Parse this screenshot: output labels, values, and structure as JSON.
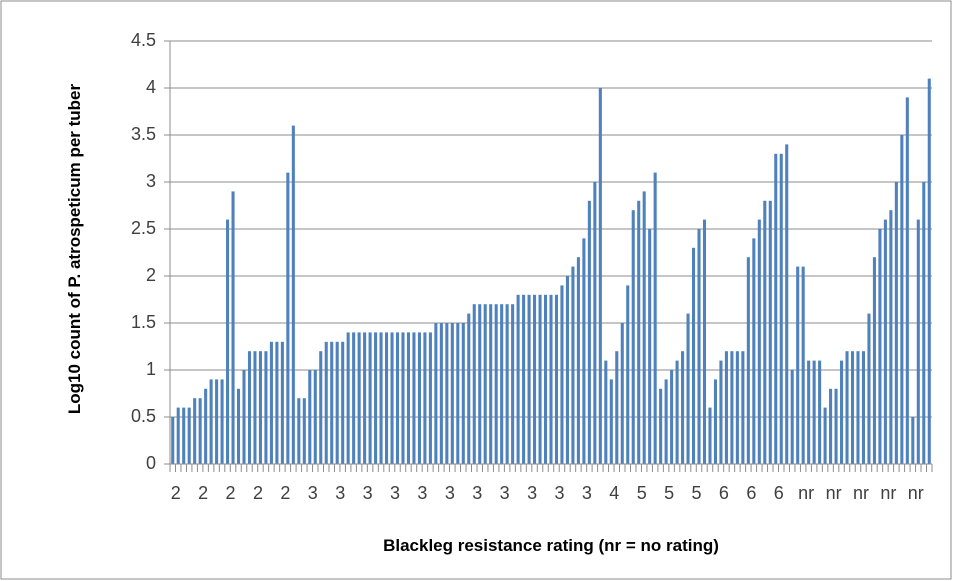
{
  "chart_data": {
    "type": "bar",
    "y_label": "Log10 count of P. atrospeticum per tuber",
    "x_label": "Blackleg resistance rating (nr = no rating)",
    "color": "#4f81bd",
    "grid": true,
    "ylim": [
      0,
      4.5
    ],
    "yticks": [
      0,
      0.5,
      1,
      1.5,
      2,
      2.5,
      3,
      3.5,
      4,
      4.5
    ],
    "categories": [
      "2",
      null,
      null,
      null,
      null,
      "2",
      null,
      null,
      null,
      null,
      "2",
      null,
      null,
      null,
      null,
      "2",
      null,
      null,
      null,
      null,
      "2",
      null,
      null,
      null,
      null,
      "3",
      null,
      null,
      null,
      null,
      "3",
      null,
      null,
      null,
      null,
      "3",
      null,
      null,
      null,
      null,
      "3",
      null,
      null,
      null,
      null,
      "3",
      null,
      null,
      null,
      null,
      "3",
      null,
      null,
      null,
      null,
      "3",
      null,
      null,
      null,
      null,
      "3",
      null,
      null,
      null,
      null,
      "3",
      null,
      null,
      null,
      null,
      "3",
      null,
      null,
      null,
      null,
      "3",
      null,
      null,
      null,
      null,
      "4",
      null,
      null,
      null,
      null,
      "5",
      null,
      null,
      null,
      null,
      "5",
      null,
      null,
      null,
      null,
      "5",
      null,
      null,
      null,
      null,
      "6",
      null,
      null,
      null,
      null,
      "6",
      null,
      null,
      null,
      null,
      "6",
      null,
      null,
      null,
      null,
      "nr",
      null,
      null,
      null,
      null,
      "nr",
      null,
      null,
      null,
      null,
      "nr",
      null,
      null,
      null,
      null,
      "nr",
      null,
      null,
      null,
      null,
      "nr",
      null,
      null,
      null
    ],
    "values": [
      0.5,
      0.6,
      0.6,
      0.6,
      0.7,
      0.7,
      0.8,
      0.9,
      0.9,
      0.9,
      2.6,
      2.9,
      0.8,
      1.0,
      1.2,
      1.2,
      1.2,
      1.2,
      1.3,
      1.3,
      1.3,
      3.1,
      3.6,
      0.7,
      0.7,
      1.0,
      1.0,
      1.2,
      1.3,
      1.3,
      1.3,
      1.3,
      1.4,
      1.4,
      1.4,
      1.4,
      1.4,
      1.4,
      1.4,
      1.4,
      1.4,
      1.4,
      1.4,
      1.4,
      1.4,
      1.4,
      1.4,
      1.4,
      1.5,
      1.5,
      1.5,
      1.5,
      1.5,
      1.5,
      1.6,
      1.7,
      1.7,
      1.7,
      1.7,
      1.7,
      1.7,
      1.7,
      1.7,
      1.8,
      1.8,
      1.8,
      1.8,
      1.8,
      1.8,
      1.8,
      1.8,
      1.9,
      2.0,
      2.1,
      2.2,
      2.4,
      2.8,
      3.0,
      4.0,
      1.1,
      0.9,
      1.2,
      1.5,
      1.9,
      2.7,
      2.8,
      2.9,
      2.5,
      3.1,
      0.8,
      0.9,
      1.0,
      1.1,
      1.2,
      1.6,
      2.3,
      2.5,
      2.6,
      0.6,
      0.9,
      1.1,
      1.2,
      1.2,
      1.2,
      1.2,
      2.2,
      2.4,
      2.6,
      2.8,
      2.8,
      3.3,
      3.3,
      3.4,
      1.0,
      2.1,
      2.1,
      1.1,
      1.1,
      1.1,
      0.6,
      0.8,
      0.8,
      1.1,
      1.2,
      1.2,
      1.2,
      1.2,
      1.6,
      2.2,
      2.5,
      2.6,
      2.7,
      3.0,
      3.5,
      3.9,
      0.5,
      2.6,
      3.0,
      4.1
    ]
  }
}
